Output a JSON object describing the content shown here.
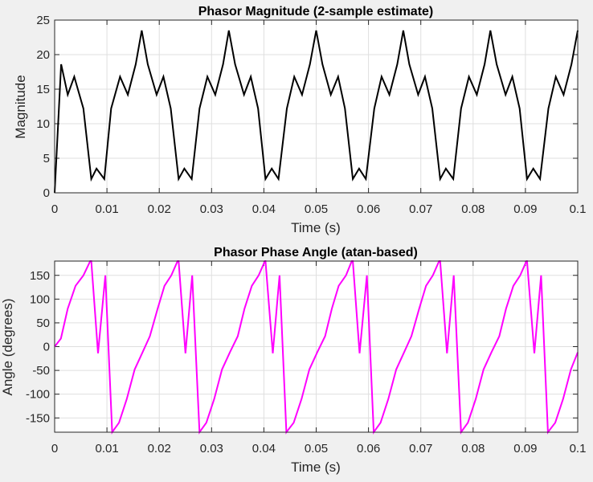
{
  "chart_data": [
    {
      "type": "line",
      "title": "Phasor Magnitude (2-sample estimate)",
      "xlabel": "Time (s)",
      "ylabel": "Magnitude",
      "xlim": [
        0,
        0.1
      ],
      "ylim": [
        0,
        25
      ],
      "grid": true,
      "xticks": [
        0,
        0.01,
        0.02,
        0.03,
        0.04,
        0.05,
        0.06,
        0.07,
        0.08,
        0.09,
        0.1
      ],
      "xtick_labels": [
        "0",
        "0.01",
        "0.02",
        "0.03",
        "0.04",
        "0.05",
        "0.06",
        "0.07",
        "0.08",
        "0.09",
        "0.1"
      ],
      "yticks": [
        0,
        5,
        10,
        15,
        20,
        25
      ],
      "ytick_labels": [
        "0",
        "5",
        "10",
        "15",
        "20",
        "25"
      ],
      "series": [
        {
          "color": "#000000",
          "x": [
            0,
            0.00125,
            0.0025,
            0.00375,
            0.0055,
            0.007,
            0.008,
            0.0095,
            0.0108,
            0.0125,
            0.014,
            0.0155,
            0.01665,
            0.0178,
            0.0195,
            0.0208,
            0.0222,
            0.0237,
            0.0248,
            0.0262,
            0.0277,
            0.0292,
            0.0307,
            0.0322,
            0.0333,
            0.0345,
            0.0362,
            0.0375,
            0.0389,
            0.0403,
            0.0415,
            0.0428,
            0.0444,
            0.0458,
            0.0473,
            0.0488,
            0.05,
            0.0512,
            0.0528,
            0.0542,
            0.0555,
            0.057,
            0.0582,
            0.0595,
            0.0611,
            0.0625,
            0.064,
            0.0655,
            0.06665,
            0.0678,
            0.0695,
            0.0708,
            0.0722,
            0.0737,
            0.0748,
            0.0762,
            0.0777,
            0.0792,
            0.0807,
            0.0822,
            0.0833,
            0.0845,
            0.0862,
            0.0875,
            0.0889,
            0.0903,
            0.0915,
            0.0928,
            0.0944,
            0.0958,
            0.0973,
            0.0988,
            0.1
          ],
          "y": [
            0,
            18.6,
            14.2,
            16.8,
            12.2,
            2.0,
            3.5,
            2.0,
            12.2,
            16.8,
            14.2,
            18.6,
            23.5,
            18.6,
            14.2,
            16.8,
            12.2,
            2.0,
            3.5,
            2.0,
            12.2,
            16.8,
            14.2,
            18.6,
            23.5,
            18.6,
            14.2,
            16.8,
            12.2,
            2.0,
            3.5,
            2.0,
            12.2,
            16.8,
            14.2,
            18.6,
            23.5,
            18.6,
            14.2,
            16.8,
            12.2,
            2.0,
            3.5,
            2.0,
            12.2,
            16.8,
            14.2,
            18.6,
            23.5,
            18.6,
            14.2,
            16.8,
            12.2,
            2.0,
            3.5,
            2.0,
            12.2,
            16.8,
            14.2,
            18.6,
            23.5,
            18.6,
            14.2,
            16.8,
            12.2,
            2.0,
            3.5,
            2.0,
            12.2,
            16.8,
            14.2,
            18.6,
            23.5
          ]
        }
      ]
    },
    {
      "type": "line",
      "title": "Phasor Phase Angle (atan-based)",
      "xlabel": "Time (s)",
      "ylabel": "Angle (degrees)",
      "xlim": [
        0,
        0.1
      ],
      "ylim": [
        -180,
        180
      ],
      "grid": true,
      "xticks": [
        0,
        0.01,
        0.02,
        0.03,
        0.04,
        0.05,
        0.06,
        0.07,
        0.08,
        0.09,
        0.1
      ],
      "xtick_labels": [
        "0",
        "0.01",
        "0.02",
        "0.03",
        "0.04",
        "0.05",
        "0.06",
        "0.07",
        "0.08",
        "0.09",
        "0.1"
      ],
      "yticks": [
        -150,
        -100,
        -50,
        0,
        50,
        100,
        150
      ],
      "ytick_labels": [
        "-150",
        "-100",
        "-50",
        "0",
        "50",
        "100",
        "150"
      ],
      "series": [
        {
          "color": "#ff00ff",
          "x": [
            0,
            0.0012,
            0.0025,
            0.004,
            0.0055,
            0.0068,
            0.007,
            0.0083,
            0.0097,
            0.011,
            0.0123,
            0.0138,
            0.0153,
            0.0168,
            0.0182,
            0.0197,
            0.021,
            0.0223,
            0.0235,
            0.0237,
            0.025,
            0.0263,
            0.0277,
            0.029,
            0.0305,
            0.032,
            0.0335,
            0.035,
            0.0363,
            0.0377,
            0.039,
            0.0402,
            0.0403,
            0.0417,
            0.043,
            0.0443,
            0.0457,
            0.0472,
            0.0487,
            0.0502,
            0.0517,
            0.053,
            0.0543,
            0.0557,
            0.0568,
            0.057,
            0.0583,
            0.0597,
            0.061,
            0.0623,
            0.0638,
            0.0653,
            0.0668,
            0.0682,
            0.0697,
            0.071,
            0.0723,
            0.0735,
            0.0737,
            0.075,
            0.0763,
            0.0777,
            0.079,
            0.0805,
            0.082,
            0.0835,
            0.085,
            0.0863,
            0.0877,
            0.089,
            0.0902,
            0.0903,
            0.0917,
            0.093,
            0.0943,
            0.0957,
            0.0972,
            0.0987,
            0.1
          ],
          "y": [
            0,
            17,
            80,
            128,
            150,
            180,
            180,
            -14,
            150,
            -180,
            -160,
            -110,
            -48,
            -12,
            22,
            80,
            128,
            150,
            180,
            180,
            -14,
            150,
            -180,
            -160,
            -110,
            -48,
            -12,
            22,
            80,
            128,
            150,
            180,
            180,
            -14,
            150,
            -180,
            -160,
            -110,
            -48,
            -12,
            22,
            80,
            128,
            150,
            180,
            180,
            -14,
            150,
            -180,
            -160,
            -110,
            -48,
            -12,
            22,
            80,
            128,
            150,
            180,
            180,
            -14,
            150,
            -180,
            -160,
            -110,
            -48,
            -12,
            22,
            80,
            128,
            150,
            180,
            180,
            -14,
            150,
            -180,
            -160,
            -110,
            -48,
            -12
          ]
        }
      ]
    }
  ]
}
